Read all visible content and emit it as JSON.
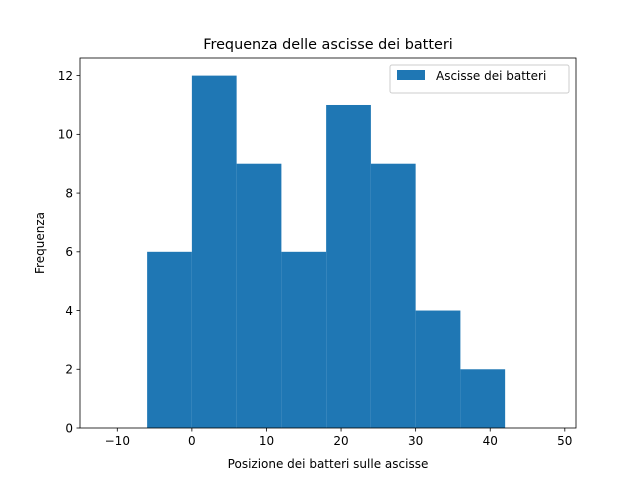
{
  "chart_data": {
    "type": "bar",
    "title": "Frequenza delle ascisse dei batteri",
    "xlabel": "Posizione dei batteri sulle ascisse",
    "ylabel": "Frequenza",
    "xlim": [
      -15,
      51.5
    ],
    "ylim": [
      0,
      12.6
    ],
    "xticks": [
      -10,
      0,
      10,
      20,
      30,
      40,
      50
    ],
    "xtick_labels": [
      "−10",
      "0",
      "10",
      "20",
      "30",
      "40",
      "50"
    ],
    "yticks": [
      0,
      2,
      4,
      6,
      8,
      10,
      12
    ],
    "ytick_labels": [
      "0",
      "2",
      "4",
      "6",
      "8",
      "10",
      "12"
    ],
    "grid": false,
    "legend_position": "top-right",
    "series": [
      {
        "name": "Ascisse dei batteri",
        "color": "#1f77b4",
        "bins": [
          {
            "start": -6,
            "end": 0,
            "value": 6
          },
          {
            "start": 0,
            "end": 6,
            "value": 12
          },
          {
            "start": 6,
            "end": 12,
            "value": 9
          },
          {
            "start": 12,
            "end": 18,
            "value": 6
          },
          {
            "start": 18,
            "end": 24,
            "value": 11
          },
          {
            "start": 24,
            "end": 30,
            "value": 9
          },
          {
            "start": 30,
            "end": 36,
            "value": 4
          },
          {
            "start": 36,
            "end": 42,
            "value": 2
          }
        ]
      }
    ]
  }
}
